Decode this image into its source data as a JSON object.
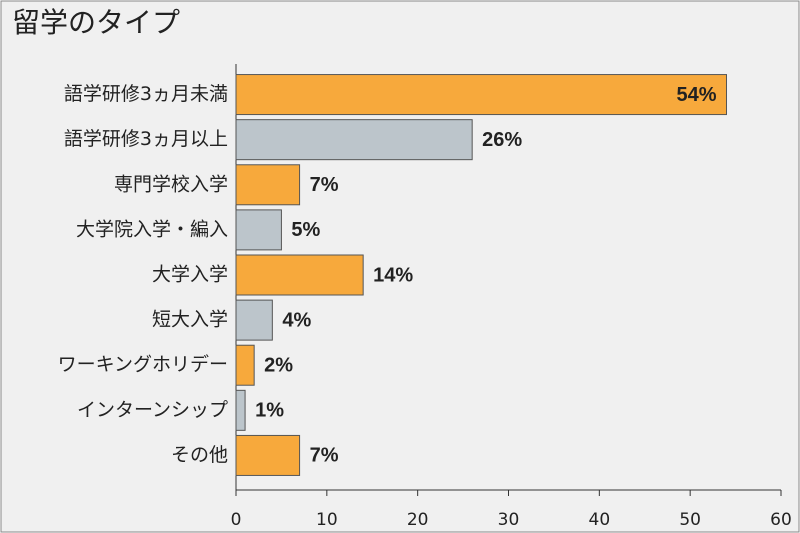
{
  "chart_data": {
    "type": "hbar",
    "title": "留学のタイプ",
    "categories": [
      "語学研修3ヵ月未満",
      "語学研修3ヵ月以上",
      "専門学校入学",
      "大学院入学・編入",
      "大学入学",
      "短大入学",
      "ワーキングホリデー",
      "インターンシップ",
      "その他"
    ],
    "values": [
      54,
      26,
      7,
      5,
      14,
      4,
      2,
      1,
      7
    ],
    "value_labels": [
      "54%",
      "26%",
      "7%",
      "5%",
      "14%",
      "4%",
      "2%",
      "1%",
      "7%"
    ],
    "colors": [
      "#f7a93c",
      "#bcc5cb",
      "#f7a93c",
      "#bcc5cb",
      "#f7a93c",
      "#bcc5cb",
      "#f7a93c",
      "#bcc5cb",
      "#f7a93c"
    ],
    "xlim": [
      0,
      60
    ],
    "xticks": [
      0,
      10,
      20,
      30,
      40,
      50,
      60
    ]
  }
}
